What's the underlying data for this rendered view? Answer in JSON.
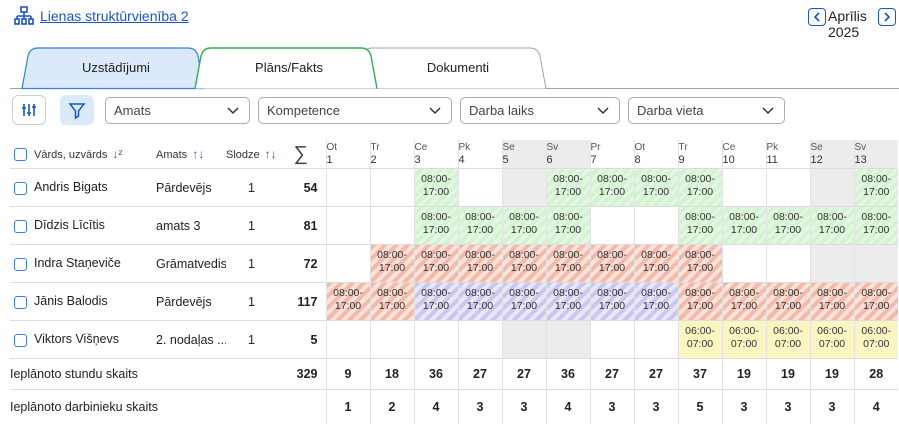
{
  "header": {
    "unit_link": "Lienas struktūrvienība 2",
    "month": "Aprīlis 2025"
  },
  "tabs": [
    {
      "label": "Uzstādījumi"
    },
    {
      "label": "Plāns/Fakts",
      "active": true
    },
    {
      "label": "Dokumenti"
    }
  ],
  "filters": [
    "Amats",
    "Kompetence",
    "Darba laiks",
    "Darba vieta"
  ],
  "table": {
    "columns": {
      "name": "Vārds, uzvārds",
      "position": "Amats",
      "load": "Slodze",
      "sum": "∑"
    },
    "days": [
      {
        "weekday": "Ot",
        "day": 1
      },
      {
        "weekday": "Tr",
        "day": 2
      },
      {
        "weekday": "Ce",
        "day": 3
      },
      {
        "weekday": "Pk",
        "day": 4
      },
      {
        "weekday": "Se",
        "day": 5,
        "weekend": true
      },
      {
        "weekday": "Sv",
        "day": 6,
        "weekend": true
      },
      {
        "weekday": "Pr",
        "day": 7
      },
      {
        "weekday": "Ot",
        "day": 8
      },
      {
        "weekday": "Tr",
        "day": 9
      },
      {
        "weekday": "Ce",
        "day": 10
      },
      {
        "weekday": "Pk",
        "day": 11
      },
      {
        "weekday": "Se",
        "day": 12,
        "weekend": true
      },
      {
        "weekday": "Sv",
        "day": 13,
        "weekend": true
      }
    ],
    "rows": [
      {
        "name": "Andris Bigats",
        "position": "Pārdevējs",
        "load": 1,
        "total": 54,
        "shifts": [
          null,
          null,
          {
            "time": "08:00-17:00",
            "kind": "green"
          },
          null,
          null,
          {
            "time": "08:00-17:00",
            "kind": "green"
          },
          {
            "time": "08:00-17:00",
            "kind": "green"
          },
          {
            "time": "08:00-17:00",
            "kind": "green"
          },
          {
            "time": "08:00-17:00",
            "kind": "green"
          },
          null,
          null,
          null,
          {
            "time": "08:00-17:00",
            "kind": "green"
          }
        ]
      },
      {
        "name": "Dīdzis Līcītis",
        "position": "amats 3",
        "load": 1,
        "total": 81,
        "shifts": [
          null,
          null,
          {
            "time": "08:00-17:00",
            "kind": "green"
          },
          {
            "time": "08:00-17:00",
            "kind": "green"
          },
          {
            "time": "08:00-17:00",
            "kind": "green"
          },
          {
            "time": "08:00-17:00",
            "kind": "green"
          },
          null,
          null,
          {
            "time": "08:00-17:00",
            "kind": "green"
          },
          {
            "time": "08:00-17:00",
            "kind": "green"
          },
          {
            "time": "08:00-17:00",
            "kind": "green"
          },
          {
            "time": "08:00-17:00",
            "kind": "green"
          },
          {
            "time": "08:00-17:00",
            "kind": "green"
          }
        ]
      },
      {
        "name": "Indra Staņeviče",
        "position": "Grāmatvedis",
        "load": 1,
        "total": 72,
        "shifts": [
          null,
          {
            "time": "08:00-17:00",
            "kind": "red"
          },
          {
            "time": "08:00-17:00",
            "kind": "red"
          },
          {
            "time": "08:00-17:00",
            "kind": "red"
          },
          {
            "time": "08:00-17:00",
            "kind": "red"
          },
          {
            "time": "08:00-17:00",
            "kind": "red"
          },
          {
            "time": "08:00-17:00",
            "kind": "red"
          },
          {
            "time": "08:00-17:00",
            "kind": "red"
          },
          {
            "time": "08:00-17:00",
            "kind": "red"
          },
          null,
          null,
          null,
          null
        ]
      },
      {
        "name": "Jānis Balodis",
        "position": "Pārdevējs",
        "load": 1,
        "total": 117,
        "shifts": [
          {
            "time": "08:00-17:00",
            "kind": "red"
          },
          {
            "time": "08:00-17:00",
            "kind": "red"
          },
          {
            "time": "08:00-17:00",
            "kind": "purple"
          },
          {
            "time": "08:00-17:00",
            "kind": "purple"
          },
          {
            "time": "08:00-17:00",
            "kind": "purple"
          },
          {
            "time": "08:00-17:00",
            "kind": "purple"
          },
          {
            "time": "08:00-17:00",
            "kind": "purple"
          },
          {
            "time": "08:00-17:00",
            "kind": "purple"
          },
          {
            "time": "08:00-17:00",
            "kind": "red"
          },
          {
            "time": "08:00-17:00",
            "kind": "red"
          },
          {
            "time": "08:00-17:00",
            "kind": "red"
          },
          {
            "time": "08:00-17:00",
            "kind": "red"
          },
          {
            "time": "08:00-17:00",
            "kind": "red"
          }
        ]
      },
      {
        "name": "Viktors Višņevs",
        "position": "2. nodaļas ...",
        "load": 1,
        "total": 5,
        "shifts": [
          null,
          null,
          null,
          null,
          null,
          null,
          null,
          null,
          {
            "time": "06:00-07:00",
            "kind": "yellow"
          },
          {
            "time": "06:00-07:00",
            "kind": "yellow"
          },
          {
            "time": "06:00-07:00",
            "kind": "yellow"
          },
          {
            "time": "06:00-07:00",
            "kind": "yellow"
          },
          {
            "time": "06:00-07:00",
            "kind": "yellow"
          }
        ]
      }
    ],
    "totals": {
      "hours_label": "Ieplānoto stundu skaits",
      "hours_total": 329,
      "hours": [
        9,
        18,
        36,
        27,
        27,
        36,
        27,
        27,
        37,
        19,
        19,
        19,
        28
      ],
      "staff_label": "Ieplānoto darbinieku skaits",
      "staff": [
        1,
        2,
        4,
        3,
        3,
        4,
        3,
        3,
        5,
        3,
        3,
        3,
        4
      ]
    }
  }
}
